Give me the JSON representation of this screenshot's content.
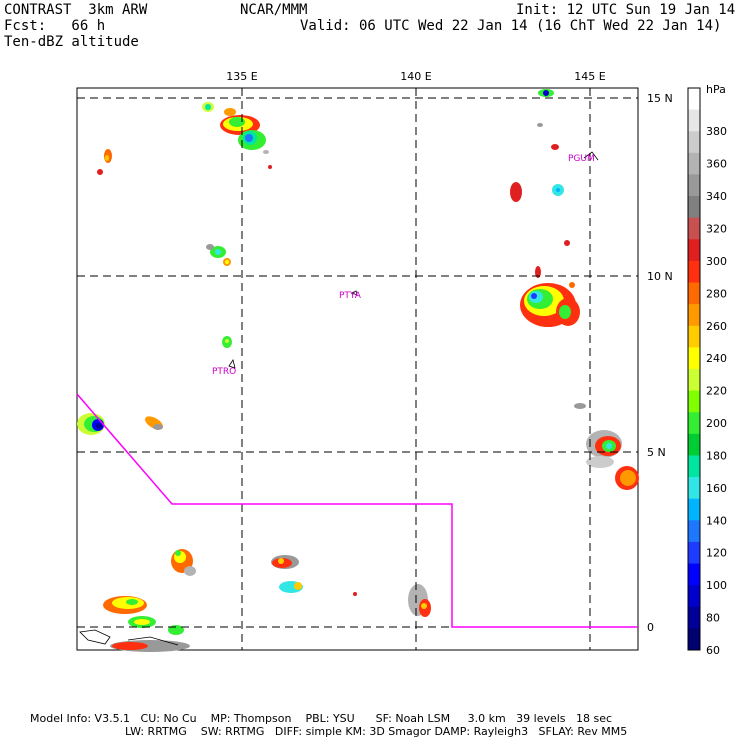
{
  "header": {
    "model": "CONTRAST  3km ARW",
    "forecast": "Fcst:   66 h",
    "field": "Ten-dBZ altitude",
    "center": "NCAR/MMM",
    "init": "Init: 12 UTC Sun 19 Jan 14",
    "valid": "Valid: 06 UTC Wed 22 Jan 14 (16 ChT Wed 22 Jan 14)"
  },
  "axes": {
    "lon_labels": [
      "135 E",
      "140 E",
      "145 E"
    ],
    "lat_labels": [
      "15 N",
      "10 N",
      "5 N",
      "0"
    ]
  },
  "sites": [
    {
      "name": "PGUM"
    },
    {
      "name": "PTYA"
    },
    {
      "name": "PTRO"
    }
  ],
  "colorbar": {
    "unit": "hPa",
    "labels": [
      "380",
      "360",
      "340",
      "320",
      "300",
      "280",
      "260",
      "240",
      "220",
      "200",
      "180",
      "160",
      "140",
      "120",
      "100",
      "80",
      "60"
    ],
    "colors": [
      "#ffffff",
      "#e6e6e6",
      "#cccccc",
      "#b3b3b3",
      "#999999",
      "#808080",
      "#c85050",
      "#e02020",
      "#ff3010",
      "#ff6a00",
      "#ff9900",
      "#ffcc00",
      "#ffff00",
      "#ccff33",
      "#80ff00",
      "#33ee33",
      "#00cc33",
      "#00e6a0",
      "#33e6e6",
      "#00b4ff",
      "#1e78ff",
      "#1e3cff",
      "#0000ff",
      "#0000cc",
      "#000099",
      "#000070"
    ]
  },
  "footer": {
    "line1": "Model Info: V3.5.1   CU: No Cu    MP: Thompson    PBL: YSU      SF: Noah LSM     3.0 km   39 levels   18 sec",
    "line2": "LW: RRTMG    SW: RRTMG   DIFF: simple KM: 3D Smagor DAMP: Rayleigh3   SFLAY: Rev MM5"
  }
}
